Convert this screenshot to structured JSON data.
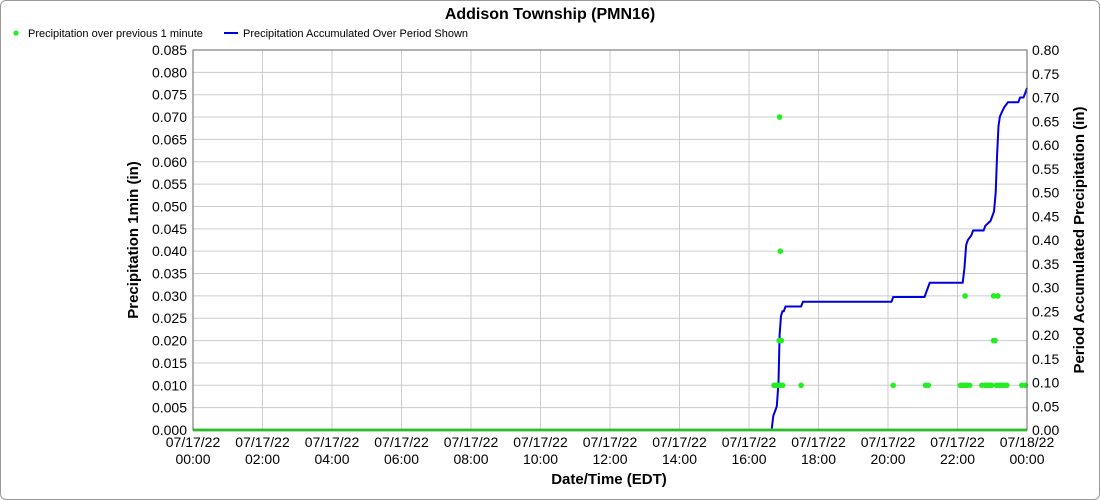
{
  "chart_data": {
    "type": "line",
    "title": "Addison Township (PMN16)",
    "xlabel": "Date/Time (EDT)",
    "ylabel_left": "Precipitation 1min (in)",
    "ylabel_right": "Period Accumulated Precipitation (in)",
    "x_range_hours": [
      0,
      24
    ],
    "x_ticks": [
      {
        "hour": 0,
        "date": "07/17/22",
        "time": "00:00"
      },
      {
        "hour": 2,
        "date": "07/17/22",
        "time": "02:00"
      },
      {
        "hour": 4,
        "date": "07/17/22",
        "time": "04:00"
      },
      {
        "hour": 6,
        "date": "07/17/22",
        "time": "06:00"
      },
      {
        "hour": 8,
        "date": "07/17/22",
        "time": "08:00"
      },
      {
        "hour": 10,
        "date": "07/17/22",
        "time": "10:00"
      },
      {
        "hour": 12,
        "date": "07/17/22",
        "time": "12:00"
      },
      {
        "hour": 14,
        "date": "07/17/22",
        "time": "14:00"
      },
      {
        "hour": 16,
        "date": "07/17/22",
        "time": "16:00"
      },
      {
        "hour": 18,
        "date": "07/17/22",
        "time": "18:00"
      },
      {
        "hour": 20,
        "date": "07/17/22",
        "time": "20:00"
      },
      {
        "hour": 22,
        "date": "07/17/22",
        "time": "22:00"
      },
      {
        "hour": 24,
        "date": "07/18/22",
        "time": "00:00"
      }
    ],
    "ylim_left": [
      0,
      0.085
    ],
    "yticks_left": [
      "0.000",
      "0.005",
      "0.010",
      "0.015",
      "0.020",
      "0.025",
      "0.030",
      "0.035",
      "0.040",
      "0.045",
      "0.050",
      "0.055",
      "0.060",
      "0.065",
      "0.070",
      "0.075",
      "0.080",
      "0.085"
    ],
    "ylim_right": [
      0,
      0.8
    ],
    "yticks_right": [
      "0.00",
      "0.05",
      "0.10",
      "0.15",
      "0.20",
      "0.25",
      "0.30",
      "0.35",
      "0.40",
      "0.45",
      "0.50",
      "0.55",
      "0.60",
      "0.65",
      "0.70",
      "0.75",
      "0.80"
    ],
    "grid": true,
    "legend_position": "top-left",
    "series": [
      {
        "name": "Precipitation over previous 1 minute",
        "kind": "scatter",
        "axis": "left",
        "color": "#22ee22",
        "points": [
          [
            16.72,
            0.01
          ],
          [
            16.76,
            0.01
          ],
          [
            16.79,
            0.01
          ],
          [
            16.83,
            0.01
          ],
          [
            16.87,
            0.02
          ],
          [
            16.9,
            0.01
          ],
          [
            16.93,
            0.02
          ],
          [
            16.97,
            0.01
          ],
          [
            16.88,
            0.07
          ],
          [
            16.9,
            0.04
          ],
          [
            17.5,
            0.01
          ],
          [
            20.15,
            0.01
          ],
          [
            21.08,
            0.01
          ],
          [
            21.16,
            0.01
          ],
          [
            22.08,
            0.01
          ],
          [
            22.13,
            0.01
          ],
          [
            22.18,
            0.01
          ],
          [
            22.22,
            0.03
          ],
          [
            22.26,
            0.01
          ],
          [
            22.35,
            0.01
          ],
          [
            22.7,
            0.01
          ],
          [
            22.8,
            0.01
          ],
          [
            22.86,
            0.01
          ],
          [
            22.92,
            0.01
          ],
          [
            22.98,
            0.01
          ],
          [
            23.04,
            0.03
          ],
          [
            23.04,
            0.02
          ],
          [
            23.08,
            0.02
          ],
          [
            23.12,
            0.01
          ],
          [
            23.16,
            0.03
          ],
          [
            23.2,
            0.01
          ],
          [
            23.26,
            0.01
          ],
          [
            23.33,
            0.01
          ],
          [
            23.42,
            0.01
          ],
          [
            23.85,
            0.01
          ],
          [
            23.95,
            0.01
          ]
        ]
      },
      {
        "name": "Precipitation Accumulated Over Period Shown",
        "kind": "line",
        "axis": "right",
        "color": "#0000dd",
        "points": [
          [
            0,
            0
          ],
          [
            16.65,
            0
          ],
          [
            16.7,
            0.03
          ],
          [
            16.75,
            0.04
          ],
          [
            16.8,
            0.05
          ],
          [
            16.85,
            0.1
          ],
          [
            16.88,
            0.2
          ],
          [
            16.92,
            0.24
          ],
          [
            16.96,
            0.25
          ],
          [
            17.0,
            0.25
          ],
          [
            17.05,
            0.26
          ],
          [
            17.5,
            0.26
          ],
          [
            17.55,
            0.27
          ],
          [
            20.1,
            0.27
          ],
          [
            20.15,
            0.28
          ],
          [
            21.05,
            0.28
          ],
          [
            21.1,
            0.29
          ],
          [
            21.15,
            0.3
          ],
          [
            21.2,
            0.31
          ],
          [
            22.15,
            0.31
          ],
          [
            22.2,
            0.34
          ],
          [
            22.25,
            0.39
          ],
          [
            22.3,
            0.4
          ],
          [
            22.4,
            0.41
          ],
          [
            22.45,
            0.42
          ],
          [
            22.75,
            0.42
          ],
          [
            22.8,
            0.43
          ],
          [
            22.95,
            0.44
          ],
          [
            23.05,
            0.46
          ],
          [
            23.1,
            0.5
          ],
          [
            23.14,
            0.58
          ],
          [
            23.18,
            0.64
          ],
          [
            23.22,
            0.66
          ],
          [
            23.28,
            0.67
          ],
          [
            23.35,
            0.68
          ],
          [
            23.45,
            0.69
          ],
          [
            23.75,
            0.69
          ],
          [
            23.8,
            0.7
          ],
          [
            23.9,
            0.7
          ],
          [
            23.95,
            0.71
          ],
          [
            24.0,
            0.72
          ]
        ]
      }
    ]
  }
}
